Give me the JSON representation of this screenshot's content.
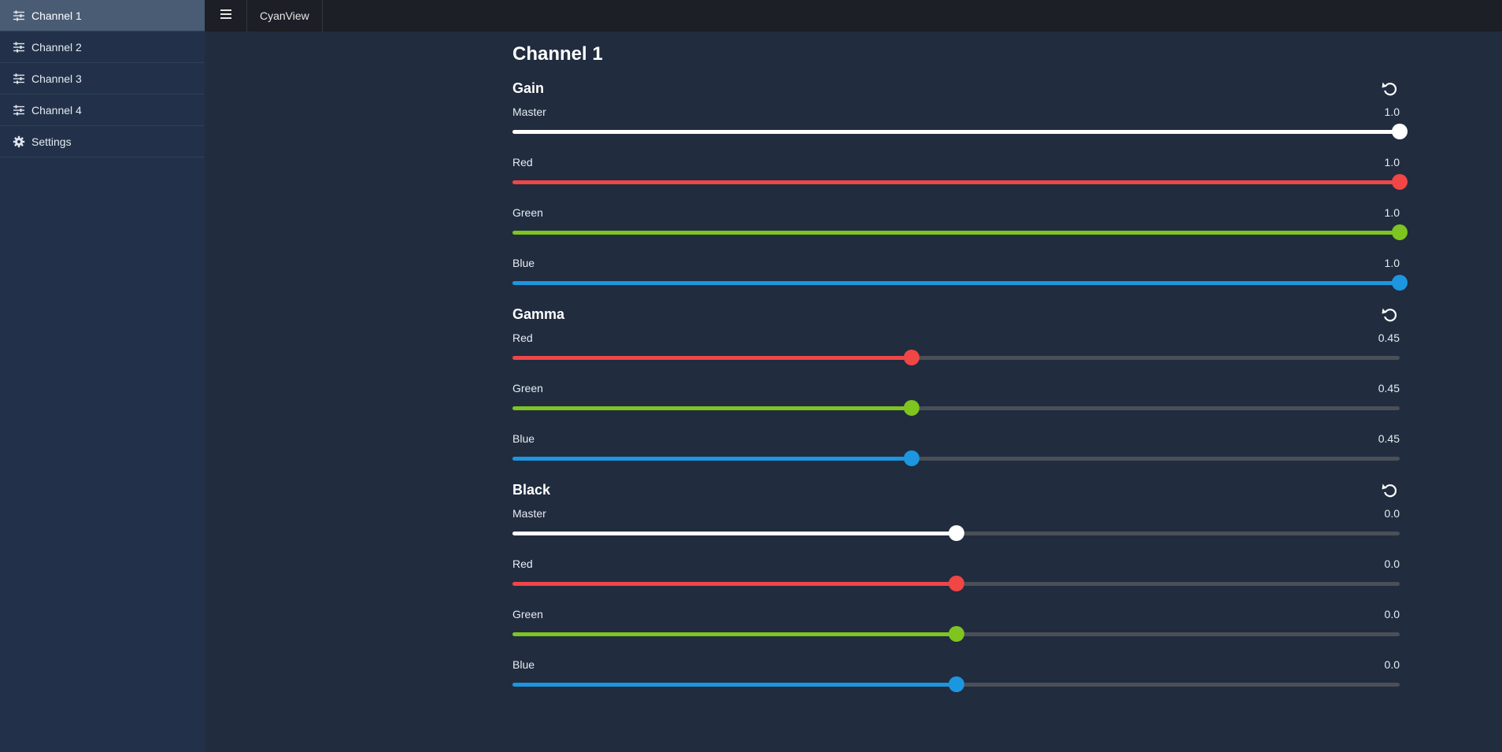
{
  "app": {
    "brand": "CyanView"
  },
  "sidebar": {
    "items": [
      {
        "label": "Channel 1",
        "icon": "sliders-icon",
        "active": true
      },
      {
        "label": "Channel 2",
        "icon": "sliders-icon",
        "active": false
      },
      {
        "label": "Channel 3",
        "icon": "sliders-icon",
        "active": false
      },
      {
        "label": "Channel 4",
        "icon": "sliders-icon",
        "active": false
      },
      {
        "label": "Settings",
        "icon": "gear-icon",
        "active": false
      }
    ]
  },
  "page": {
    "title": "Channel 1"
  },
  "colors": {
    "master": "#ffffff",
    "red": "#f04646",
    "green": "#7ec51f",
    "blue": "#1d96e0"
  },
  "sections": [
    {
      "title": "Gain",
      "sliders": [
        {
          "label": "Master",
          "value": "1.0",
          "fraction": 1.0,
          "color": "master"
        },
        {
          "label": "Red",
          "value": "1.0",
          "fraction": 1.0,
          "color": "red"
        },
        {
          "label": "Green",
          "value": "1.0",
          "fraction": 1.0,
          "color": "green"
        },
        {
          "label": "Blue",
          "value": "1.0",
          "fraction": 1.0,
          "color": "blue"
        }
      ]
    },
    {
      "title": "Gamma",
      "sliders": [
        {
          "label": "Red",
          "value": "0.45",
          "fraction": 0.45,
          "color": "red"
        },
        {
          "label": "Green",
          "value": "0.45",
          "fraction": 0.45,
          "color": "green"
        },
        {
          "label": "Blue",
          "value": "0.45",
          "fraction": 0.45,
          "color": "blue"
        }
      ]
    },
    {
      "title": "Black",
      "sliders": [
        {
          "label": "Master",
          "value": "0.0",
          "fraction": 0.5,
          "color": "master"
        },
        {
          "label": "Red",
          "value": "0.0",
          "fraction": 0.5,
          "color": "red"
        },
        {
          "label": "Green",
          "value": "0.0",
          "fraction": 0.5,
          "color": "green"
        },
        {
          "label": "Blue",
          "value": "0.0",
          "fraction": 0.5,
          "color": "blue"
        }
      ]
    }
  ]
}
